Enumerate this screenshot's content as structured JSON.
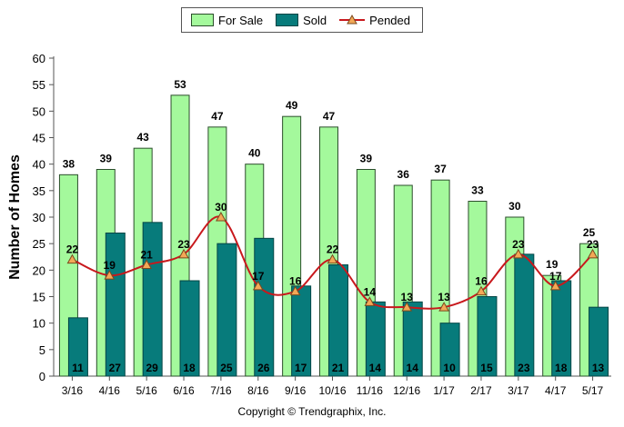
{
  "legend": {
    "for_sale": "For Sale",
    "sold": "Sold",
    "pended": "Pended"
  },
  "copyright": "Copyright © Trendgraphix, Inc.",
  "colors": {
    "for_sale_fill": "#a4f99c",
    "for_sale_edge": "#2b4e2b",
    "sold_fill": "#077b7b",
    "sold_edge": "#034545",
    "pended_line": "#c8181c",
    "pended_marker": "#f3a857",
    "pended_marker_edge": "#7a4a1e"
  },
  "chart_data": {
    "type": "bar",
    "ylabel": "Number of Homes",
    "ylim": [
      0,
      60
    ],
    "ytick_step": 5,
    "grid": false,
    "legend_position": "top-center",
    "categories": [
      "3/16",
      "4/16",
      "5/16",
      "6/16",
      "7/16",
      "8/16",
      "9/16",
      "10/16",
      "11/16",
      "12/16",
      "1/17",
      "2/17",
      "3/17",
      "4/17",
      "5/17"
    ],
    "series": [
      {
        "name": "For Sale",
        "kind": "bar",
        "values": [
          38,
          39,
          43,
          53,
          47,
          40,
          49,
          47,
          39,
          36,
          37,
          33,
          30,
          19,
          25
        ]
      },
      {
        "name": "Sold",
        "kind": "bar",
        "values": [
          11,
          27,
          29,
          18,
          25,
          26,
          17,
          21,
          14,
          14,
          10,
          15,
          23,
          18,
          13
        ]
      },
      {
        "name": "Pended",
        "kind": "line",
        "values": [
          22,
          19,
          21,
          23,
          30,
          17,
          16,
          22,
          14,
          13,
          13,
          16,
          23,
          17,
          23
        ]
      }
    ]
  }
}
